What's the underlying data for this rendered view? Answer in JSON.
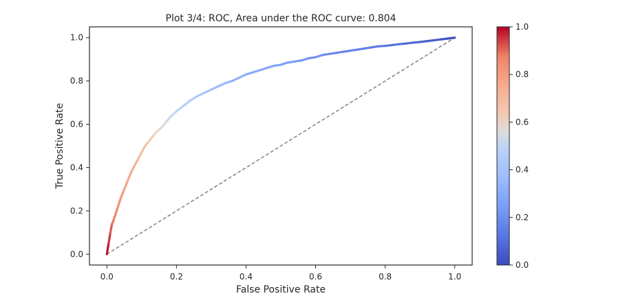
{
  "chart_data": [
    {
      "type": "line",
      "title": "Plot 3/4: ROC, Area under the ROC curve: 0.804",
      "xlabel": "False Positive Rate",
      "ylabel": "True Positive Rate",
      "xlim": [
        -0.05,
        1.05
      ],
      "ylim": [
        -0.05,
        1.05
      ],
      "xticks": [
        "0.0",
        "0.2",
        "0.4",
        "0.6",
        "0.8",
        "1.0"
      ],
      "yticks": [
        "0.0",
        "0.2",
        "0.4",
        "0.6",
        "0.8",
        "1.0"
      ],
      "grid": false,
      "colormap": "coolwarm",
      "series": [
        {
          "x": [
            0.0,
            0.005,
            0.01,
            0.015,
            0.02,
            0.03,
            0.04,
            0.05,
            0.06,
            0.07,
            0.08,
            0.09,
            0.1,
            0.11,
            0.12,
            0.13,
            0.14,
            0.15,
            0.16,
            0.17,
            0.18,
            0.2,
            0.22,
            0.24,
            0.26,
            0.28,
            0.3,
            0.32,
            0.34,
            0.36,
            0.38,
            0.4,
            0.42,
            0.44,
            0.46,
            0.48,
            0.5,
            0.52,
            0.54,
            0.56,
            0.58,
            0.6,
            0.62,
            0.64,
            0.66,
            0.68,
            0.7,
            0.72,
            0.74,
            0.76,
            0.78,
            0.8,
            0.82,
            0.84,
            0.86,
            0.88,
            0.9,
            0.92,
            0.94,
            0.96,
            0.98,
            1.0
          ],
          "y": [
            0.0,
            0.05,
            0.1,
            0.14,
            0.16,
            0.21,
            0.26,
            0.3,
            0.34,
            0.38,
            0.41,
            0.44,
            0.47,
            0.5,
            0.52,
            0.54,
            0.56,
            0.575,
            0.59,
            0.61,
            0.63,
            0.66,
            0.685,
            0.71,
            0.73,
            0.745,
            0.76,
            0.775,
            0.79,
            0.8,
            0.815,
            0.83,
            0.84,
            0.85,
            0.86,
            0.87,
            0.875,
            0.885,
            0.89,
            0.895,
            0.905,
            0.91,
            0.92,
            0.925,
            0.93,
            0.935,
            0.94,
            0.945,
            0.95,
            0.955,
            0.96,
            0.962,
            0.966,
            0.97,
            0.973,
            0.977,
            0.98,
            0.984,
            0.988,
            0.992,
            0.996,
            1.0
          ],
          "threshold": [
            1.0,
            0.97,
            0.93,
            0.9,
            0.88,
            0.85,
            0.82,
            0.79,
            0.77,
            0.75,
            0.72,
            0.7,
            0.68,
            0.66,
            0.64,
            0.62,
            0.6,
            0.59,
            0.57,
            0.55,
            0.53,
            0.5,
            0.47,
            0.45,
            0.43,
            0.41,
            0.39,
            0.37,
            0.355,
            0.34,
            0.325,
            0.31,
            0.3,
            0.29,
            0.28,
            0.27,
            0.26,
            0.25,
            0.24,
            0.23,
            0.22,
            0.21,
            0.2,
            0.19,
            0.18,
            0.17,
            0.165,
            0.16,
            0.15,
            0.14,
            0.13,
            0.12,
            0.11,
            0.1,
            0.09,
            0.08,
            0.07,
            0.06,
            0.05,
            0.04,
            0.02,
            0.0
          ]
        }
      ],
      "reference_line": {
        "x": [
          0,
          1
        ],
        "y": [
          0,
          1
        ],
        "style": "dashed",
        "color": "#808080"
      },
      "colorbar": {
        "range": [
          0.0,
          1.0
        ],
        "ticks": [
          "0.0",
          "0.2",
          "0.4",
          "0.6",
          "0.8",
          "1.0"
        ]
      }
    }
  ]
}
